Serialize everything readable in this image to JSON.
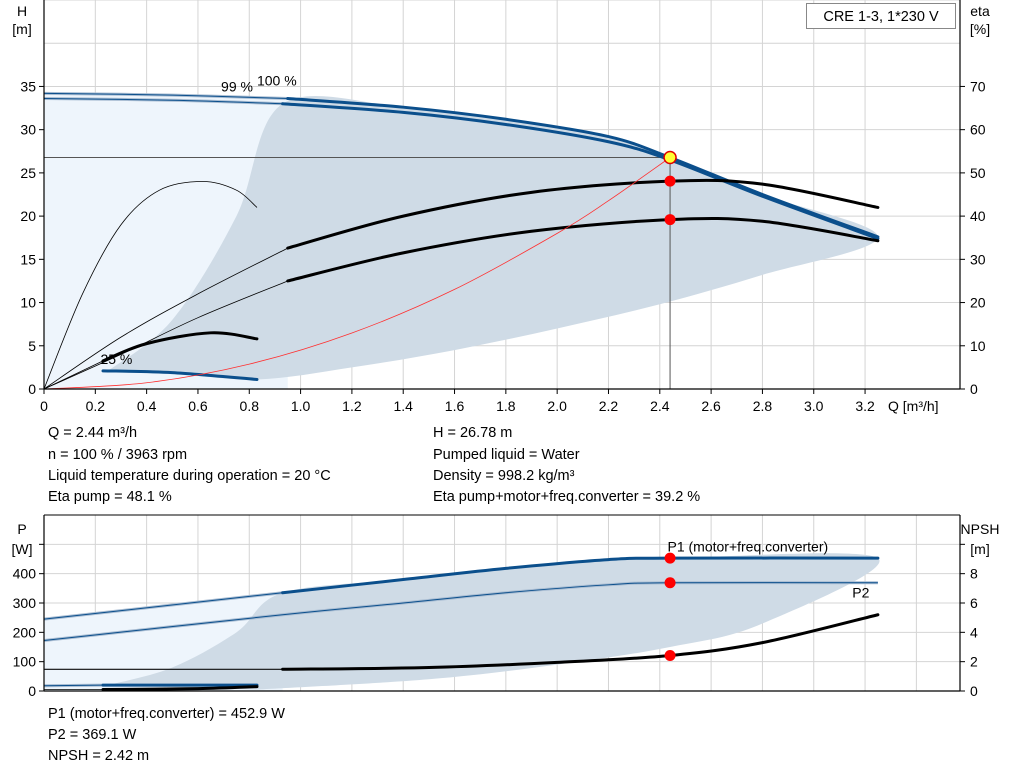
{
  "legend_box": "CRE 1-3, 1*230 V",
  "chart_data": [
    {
      "type": "line",
      "y_left_label": [
        "H",
        "[m]"
      ],
      "y_right_label": [
        "eta",
        "[%]"
      ],
      "x_label": "Q [m³/h]",
      "xlim": [
        0,
        3.57
      ],
      "x_ticks": [
        0,
        0.2,
        0.4,
        0.6,
        0.8,
        1.0,
        1.2,
        1.4,
        1.6,
        1.8,
        2.0,
        2.2,
        2.4,
        2.6,
        2.8,
        3.0,
        3.2
      ],
      "x_tick_labels": [
        "0",
        "0.2",
        "0.4",
        "0.6",
        "0.8",
        "1.0",
        "1.2",
        "1.4",
        "1.6",
        "1.8",
        "2.0",
        "2.2",
        "2.4",
        "2.6",
        "2.8",
        "3.0",
        "3.2"
      ],
      "y_left_lim": [
        0,
        45
      ],
      "y_left_ticks": [
        0,
        5,
        10,
        15,
        20,
        25,
        30,
        35
      ],
      "y_right_lim": [
        0,
        90
      ],
      "y_right_ticks": [
        0,
        10,
        20,
        30,
        40,
        50,
        60,
        70
      ],
      "grid": true,
      "curve_labels": [
        {
          "text": "100 %",
          "at": [
            0.83,
            35.1
          ]
        },
        {
          "text": "99 %",
          "at": [
            0.82,
            34.4
          ]
        },
        {
          "text": "25 %",
          "at": [
            0.22,
            2.9
          ]
        }
      ],
      "series": [
        {
          "axis": "left",
          "color": "#0b4f8c",
          "thick_from": 0.95,
          "points": [
            [
              0,
              34.2
            ],
            [
              0.5,
              34.0
            ],
            [
              0.95,
              33.6
            ],
            [
              1.4,
              32.6
            ],
            [
              1.8,
              31.2
            ],
            [
              2.2,
              29.2
            ],
            [
              2.44,
              26.78
            ],
            [
              2.8,
              22.5
            ],
            [
              3.25,
              17.6
            ]
          ]
        },
        {
          "axis": "left",
          "color": "#0b4f8c",
          "thick_from": 0.93,
          "points": [
            [
              0,
              33.6
            ],
            [
              0.5,
              33.4
            ],
            [
              0.93,
              33.0
            ],
            [
              1.4,
              32.0
            ],
            [
              1.8,
              30.6
            ],
            [
              2.2,
              28.6
            ],
            [
              2.44,
              26.5
            ],
            [
              2.8,
              22.3
            ],
            [
              3.25,
              17.4
            ]
          ]
        },
        {
          "axis": "left",
          "color": "#0b4f8c",
          "thick_from": 0.23,
          "points": [
            [
              0.23,
              2.1
            ],
            [
              0.5,
              1.9
            ],
            [
              0.83,
              1.1
            ]
          ]
        },
        {
          "axis": "right",
          "color": "#000000",
          "thick_from": 0.95,
          "points": [
            [
              0,
              0
            ],
            [
              0.3,
              12
            ],
            [
              0.6,
              22
            ],
            [
              0.95,
              32.6
            ],
            [
              1.4,
              40
            ],
            [
              1.9,
              45.5
            ],
            [
              2.44,
              48.1
            ],
            [
              2.8,
              47.4
            ],
            [
              3.25,
              42
            ]
          ]
        },
        {
          "axis": "right",
          "color": "#000000",
          "thick_from": 0.95,
          "points": [
            [
              0,
              0
            ],
            [
              0.3,
              8
            ],
            [
              0.6,
              16.5
            ],
            [
              0.95,
              25
            ],
            [
              1.4,
              31.5
            ],
            [
              1.9,
              36.5
            ],
            [
              2.44,
              39.2
            ],
            [
              2.8,
              38.8
            ],
            [
              3.25,
              34.3
            ]
          ]
        },
        {
          "axis": "right",
          "color": "#000000",
          "thick_from": 9,
          "points": [
            [
              0,
              0
            ],
            [
              0.15,
              22
            ],
            [
              0.3,
              38
            ],
            [
              0.45,
              46
            ],
            [
              0.62,
              48
            ],
            [
              0.75,
              46
            ],
            [
              0.83,
              42
            ]
          ]
        },
        {
          "axis": "right",
          "color": "#000000",
          "thick_from": 0.23,
          "points": [
            [
              0,
              0
            ],
            [
              0.23,
              6.5
            ],
            [
              0.4,
              10.5
            ],
            [
              0.65,
              13
            ],
            [
              0.83,
              11.6
            ]
          ]
        },
        {
          "axis": "left",
          "color": "#ff3030",
          "thick_from": 9,
          "thin": true,
          "points": [
            [
              0,
              0
            ],
            [
              0.4,
              0.72
            ],
            [
              0.8,
              2.88
            ],
            [
              1.2,
              6.48
            ],
            [
              1.6,
              11.52
            ],
            [
              2.0,
              18.0
            ],
            [
              2.2,
              21.78
            ],
            [
              2.44,
              26.78
            ]
          ]
        }
      ],
      "region_light": [
        [
          0,
          0
        ],
        [
          0,
          34.2
        ],
        [
          0.5,
          34.0
        ],
        [
          0.95,
          33.6
        ],
        [
          0.95,
          0
        ]
      ],
      "region_dark": [
        [
          0.25,
          2.1
        ],
        [
          0.5,
          8
        ],
        [
          0.75,
          20
        ],
        [
          0.93,
          33.0
        ],
        [
          1.4,
          32.6
        ],
        [
          1.8,
          31.2
        ],
        [
          2.2,
          29.2
        ],
        [
          2.44,
          26.78
        ],
        [
          2.8,
          22.5
        ],
        [
          3.25,
          17.6
        ],
        [
          2.8,
          13.2
        ],
        [
          2.4,
          9.8
        ],
        [
          2.0,
          7
        ],
        [
          1.6,
          4.5
        ],
        [
          1.2,
          2.5
        ],
        [
          0.83,
          1.1
        ],
        [
          0.5,
          1.9
        ]
      ],
      "operating_point": {
        "q": 2.44,
        "h": 26.78,
        "eta_pump": 48.1,
        "eta_total": 39.2
      }
    },
    {
      "type": "line",
      "y_left_label": [
        "P",
        "[W]"
      ],
      "y_right_label": [
        "NPSH",
        "[m]"
      ],
      "xlim": [
        0,
        3.57
      ],
      "x_ticks": [
        0,
        0.2,
        0.4,
        0.6,
        0.8,
        1.0,
        1.2,
        1.4,
        1.6,
        1.8,
        2.0,
        2.2,
        2.4,
        2.6,
        2.8,
        3.0,
        3.2,
        3.4
      ],
      "y_left_lim": [
        0,
        600
      ],
      "y_left_ticks": [
        0,
        100,
        200,
        300,
        400,
        500
      ],
      "y_left_tick_labels": [
        "0",
        "100",
        "200",
        "300",
        "400",
        ""
      ],
      "y_right_lim": [
        0,
        12
      ],
      "y_right_ticks": [
        0,
        2,
        4,
        6,
        8,
        10
      ],
      "y_right_tick_labels": [
        "0",
        "2",
        "4",
        "6",
        "8",
        ""
      ],
      "grid": true,
      "series_labels": [
        {
          "text": "P1 (motor+freq.converter)",
          "at": [
            2.43,
            475
          ]
        },
        {
          "text": "P2",
          "at": [
            3.15,
            318
          ]
        }
      ],
      "series": [
        {
          "axis": "left",
          "color": "#0b4f8c",
          "thick_from": 0.93,
          "name": "P1 (motor+freq.converter)",
          "points": [
            [
              0,
              245
            ],
            [
              0.93,
              335
            ],
            [
              1.4,
              380
            ],
            [
              1.8,
              418
            ],
            [
              2.2,
              448
            ],
            [
              2.44,
              452.9
            ],
            [
              3.25,
              452.9
            ]
          ]
        },
        {
          "axis": "left",
          "color": "#0b4f8c",
          "thick_from": 9,
          "name": "P2",
          "points": [
            [
              0,
              172
            ],
            [
              0.93,
              260
            ],
            [
              1.4,
              300
            ],
            [
              1.8,
              335
            ],
            [
              2.2,
              362
            ],
            [
              2.44,
              369.1
            ],
            [
              3.25,
              369.1
            ]
          ]
        },
        {
          "axis": "right",
          "color": "#000000",
          "thick_from": 0.93,
          "points": [
            [
              0,
              1.48
            ],
            [
              0.93,
              1.48
            ],
            [
              1.5,
              1.6
            ],
            [
              2.0,
              1.95
            ],
            [
              2.44,
              2.42
            ],
            [
              2.8,
              3.3
            ],
            [
              3.25,
              5.2
            ]
          ]
        },
        {
          "axis": "left",
          "color": "#0b4f8c",
          "thick_from": 0.23,
          "points": [
            [
              0,
              18
            ],
            [
              0.23,
              20
            ],
            [
              0.83,
              20
            ]
          ]
        },
        {
          "axis": "left",
          "color": "#000000",
          "thick_from": 0.23,
          "points": [
            [
              0,
              5
            ],
            [
              0.23,
              5
            ],
            [
              0.6,
              8
            ],
            [
              0.83,
              15
            ]
          ]
        }
      ],
      "region_light": [
        [
          0,
          0
        ],
        [
          0,
          245
        ],
        [
          0.93,
          335
        ],
        [
          0.93,
          0
        ]
      ],
      "region_dark": [
        [
          0.25,
          20
        ],
        [
          0.5,
          80
        ],
        [
          0.75,
          200
        ],
        [
          0.93,
          335
        ],
        [
          1.4,
          380
        ],
        [
          1.8,
          418
        ],
        [
          2.2,
          448
        ],
        [
          2.44,
          452.9
        ],
        [
          3.25,
          452.9
        ],
        [
          2.8,
          230
        ],
        [
          2.44,
          150
        ],
        [
          2.0,
          90
        ],
        [
          1.5,
          40
        ],
        [
          0.83,
          5
        ]
      ],
      "operating_point": {
        "q": 2.44,
        "p1": 452.9,
        "p2": 369.1,
        "npsh": 2.42
      }
    }
  ],
  "info_top_left": [
    "Q = 2.44 m³/h",
    "n = 100 % / 3963 rpm",
    "Liquid temperature during operation = 20 °C",
    "Eta pump = 48.1 %"
  ],
  "info_top_right": [
    "H = 26.78 m",
    "Pumped liquid = Water",
    "Density = 998.2 kg/m³",
    "Eta pump+motor+freq.converter = 39.2 %"
  ],
  "info_bottom": [
    "P1 (motor+freq.converter) = 452.9 W",
    "P2 = 369.1 W",
    "NPSH = 2.42 m"
  ]
}
